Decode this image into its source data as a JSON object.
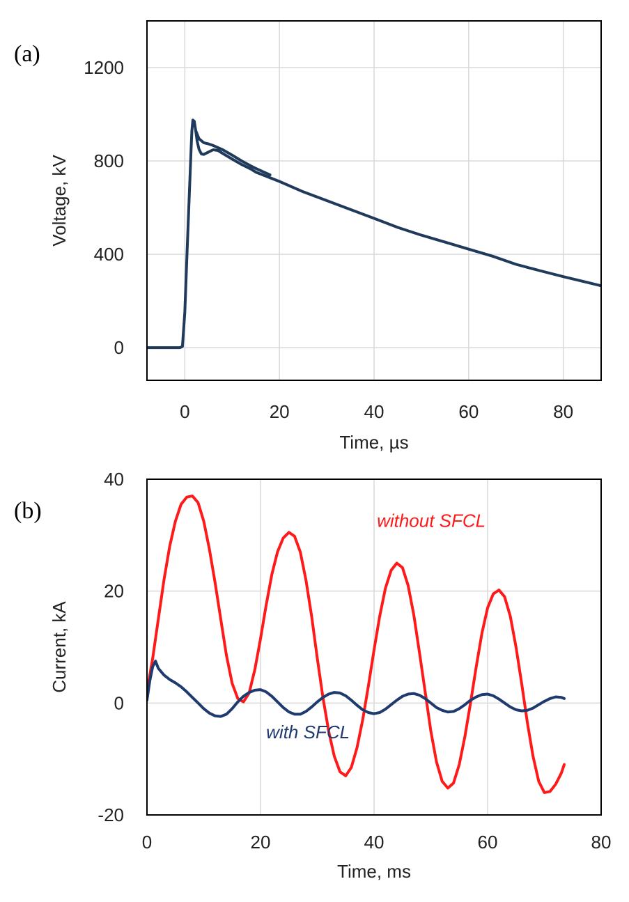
{
  "chart_data": [
    {
      "type": "line",
      "panel_label": "(a)",
      "xlabel": "Time, µs",
      "ylabel": "Voltage, kV",
      "xlim": [
        -8,
        88
      ],
      "ylim": [
        -140,
        1400
      ],
      "xticks": [
        0,
        20,
        40,
        60,
        80
      ],
      "yticks": [
        0,
        400,
        800,
        1200
      ],
      "grid": true,
      "series": [
        {
          "color": "#1f3a5a",
          "points": [
            [
              -8,
              0
            ],
            [
              -1,
              0
            ],
            [
              -0.5,
              5
            ],
            [
              0,
              150
            ],
            [
              0.5,
              420
            ],
            [
              1,
              680
            ],
            [
              1.3,
              840
            ],
            [
              1.5,
              930
            ],
            [
              1.7,
              975
            ],
            [
              2,
              970
            ],
            [
              2.3,
              930
            ],
            [
              2.6,
              885
            ],
            [
              3,
              850
            ],
            [
              3.5,
              830
            ],
            [
              4,
              828
            ],
            [
              5,
              838
            ],
            [
              6,
              848
            ],
            [
              7,
              845
            ],
            [
              8,
              832
            ],
            [
              10,
              808
            ],
            [
              12,
              785
            ],
            [
              14,
              765
            ],
            [
              15,
              752
            ],
            [
              20,
              712
            ],
            [
              25,
              668
            ],
            [
              30,
              630
            ],
            [
              35,
              592
            ],
            [
              40,
              554
            ],
            [
              45,
              515
            ],
            [
              50,
              482
            ],
            [
              55,
              452
            ],
            [
              60,
              422
            ],
            [
              65,
              392
            ],
            [
              70,
              357
            ],
            [
              75,
              330
            ],
            [
              80,
              304
            ],
            [
              85,
              280
            ],
            [
              88,
              265
            ]
          ]
        },
        {
          "color": "#1f3a5a",
          "points": [
            [
              2.3,
              930
            ],
            [
              3,
              895
            ],
            [
              4,
              878
            ],
            [
              5,
              873
            ],
            [
              6,
              866
            ],
            [
              8,
              848
            ],
            [
              10,
              825
            ],
            [
              12,
              800
            ],
            [
              14,
              778
            ],
            [
              15,
              768
            ],
            [
              18,
              740
            ]
          ]
        }
      ]
    },
    {
      "type": "line",
      "panel_label": "(b)",
      "xlabel": "Time, ms",
      "ylabel": "Current, kA",
      "xlim": [
        0,
        80
      ],
      "ylim": [
        -20,
        40
      ],
      "xticks": [
        0,
        20,
        40,
        60,
        80
      ],
      "yticks": [
        -20,
        0,
        20,
        40
      ],
      "grid": true,
      "annotations": [
        {
          "text": "without SFCL",
          "x": 40.5,
          "y": 31.5,
          "color": "#ff1a1a"
        },
        {
          "text": "with SFCL",
          "x": 21,
          "y": -6.3,
          "color": "#1f3a6e"
        }
      ],
      "series": [
        {
          "color": "#ff1a1a",
          "points": [
            [
              0,
              2
            ],
            [
              1,
              8
            ],
            [
              2,
              15
            ],
            [
              3,
              22
            ],
            [
              4,
              28
            ],
            [
              5,
              32.5
            ],
            [
              6,
              35.5
            ],
            [
              7,
              36.8
            ],
            [
              8,
              37
            ],
            [
              9,
              35.8
            ],
            [
              10,
              32.5
            ],
            [
              11,
              27.5
            ],
            [
              12,
              21.5
            ],
            [
              13,
              15
            ],
            [
              14,
              8.5
            ],
            [
              15,
              3.5
            ],
            [
              16,
              0.8
            ],
            [
              17,
              0.2
            ],
            [
              18,
              1.8
            ],
            [
              19,
              6
            ],
            [
              20,
              11.5
            ],
            [
              21,
              17.5
            ],
            [
              22,
              23
            ],
            [
              23,
              27
            ],
            [
              24,
              29.5
            ],
            [
              25,
              30.5
            ],
            [
              26,
              29.8
            ],
            [
              27,
              27
            ],
            [
              28,
              22
            ],
            [
              29,
              15.5
            ],
            [
              30,
              8
            ],
            [
              31,
              1
            ],
            [
              32,
              -5
            ],
            [
              33,
              -9.5
            ],
            [
              34,
              -12.3
            ],
            [
              35,
              -13
            ],
            [
              36,
              -11.5
            ],
            [
              37,
              -8
            ],
            [
              38,
              -3
            ],
            [
              39,
              3
            ],
            [
              40,
              9.5
            ],
            [
              41,
              15.5
            ],
            [
              42,
              20.5
            ],
            [
              43,
              23.7
            ],
            [
              44,
              25
            ],
            [
              45,
              24.2
            ],
            [
              46,
              21
            ],
            [
              47,
              15.8
            ],
            [
              48,
              9
            ],
            [
              49,
              2
            ],
            [
              50,
              -5
            ],
            [
              51,
              -10.5
            ],
            [
              52,
              -14
            ],
            [
              53,
              -15.2
            ],
            [
              54,
              -14.3
            ],
            [
              55,
              -11
            ],
            [
              56,
              -6
            ],
            [
              57,
              0
            ],
            [
              58,
              6.5
            ],
            [
              59,
              12.5
            ],
            [
              60,
              17
            ],
            [
              61,
              19.5
            ],
            [
              62,
              20.2
            ],
            [
              63,
              19
            ],
            [
              64,
              15.5
            ],
            [
              65,
              10
            ],
            [
              66,
              3.5
            ],
            [
              67,
              -3.5
            ],
            [
              68,
              -9.5
            ],
            [
              69,
              -14
            ],
            [
              70,
              -16
            ],
            [
              71,
              -15.8
            ],
            [
              72,
              -14.5
            ],
            [
              73,
              -12.5
            ],
            [
              73.5,
              -11
            ]
          ]
        },
        {
          "color": "#1f3a6e",
          "points": [
            [
              0,
              0.5
            ],
            [
              0.5,
              4
            ],
            [
              1,
              6.5
            ],
            [
              1.5,
              7.5
            ],
            [
              2,
              6.2
            ],
            [
              3,
              5
            ],
            [
              4,
              4.2
            ],
            [
              5,
              3.6
            ],
            [
              6,
              2.9
            ],
            [
              7,
              2
            ],
            [
              8,
              1
            ],
            [
              9,
              0
            ],
            [
              10,
              -1
            ],
            [
              11,
              -1.8
            ],
            [
              12,
              -2.3
            ],
            [
              13,
              -2.4
            ],
            [
              14,
              -2
            ],
            [
              15,
              -1
            ],
            [
              16,
              0.2
            ],
            [
              17,
              1.2
            ],
            [
              18,
              1.9
            ],
            [
              19,
              2.3
            ],
            [
              20,
              2.4
            ],
            [
              21,
              2
            ],
            [
              22,
              1.2
            ],
            [
              23,
              0.2
            ],
            [
              24,
              -0.8
            ],
            [
              25,
              -1.6
            ],
            [
              26,
              -2
            ],
            [
              27,
              -2
            ],
            [
              28,
              -1.5
            ],
            [
              29,
              -0.7
            ],
            [
              30,
              0.2
            ],
            [
              31,
              1
            ],
            [
              32,
              1.6
            ],
            [
              33,
              1.9
            ],
            [
              34,
              1.8
            ],
            [
              35,
              1.3
            ],
            [
              36,
              0.5
            ],
            [
              37,
              -0.4
            ],
            [
              38,
              -1.2
            ],
            [
              39,
              -1.7
            ],
            [
              40,
              -1.9
            ],
            [
              41,
              -1.7
            ],
            [
              42,
              -1.1
            ],
            [
              43,
              -0.3
            ],
            [
              44,
              0.5
            ],
            [
              45,
              1.2
            ],
            [
              46,
              1.6
            ],
            [
              47,
              1.7
            ],
            [
              48,
              1.4
            ],
            [
              49,
              0.8
            ],
            [
              50,
              0
            ],
            [
              51,
              -0.8
            ],
            [
              52,
              -1.3
            ],
            [
              53,
              -1.6
            ],
            [
              54,
              -1.5
            ],
            [
              55,
              -1
            ],
            [
              56,
              -0.3
            ],
            [
              57,
              0.5
            ],
            [
              58,
              1.1
            ],
            [
              59,
              1.5
            ],
            [
              60,
              1.6
            ],
            [
              61,
              1.3
            ],
            [
              62,
              0.7
            ],
            [
              63,
              0
            ],
            [
              64,
              -0.7
            ],
            [
              65,
              -1.2
            ],
            [
              66,
              -1.4
            ],
            [
              67,
              -1.3
            ],
            [
              68,
              -0.9
            ],
            [
              69,
              -0.3
            ],
            [
              70,
              0.3
            ],
            [
              71,
              0.8
            ],
            [
              72,
              1.1
            ],
            [
              73,
              1
            ],
            [
              73.5,
              0.8
            ]
          ]
        }
      ]
    }
  ]
}
